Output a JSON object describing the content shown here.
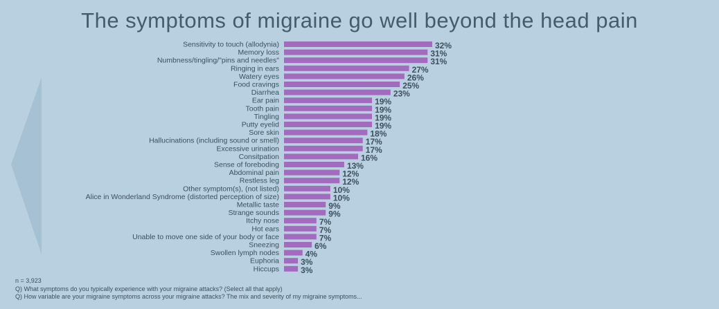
{
  "title": "The symptoms of migraine go well beyond the head pain",
  "colors": {
    "background": "#b8d0e0",
    "bar": "#a36bbd",
    "text": "#3d4f5e",
    "title": "#475b6b",
    "arrow": "#a6c1d4"
  },
  "chart_data": {
    "type": "bar",
    "orientation": "horizontal",
    "title": "The symptoms of migraine go well beyond the head pain",
    "xlim": [
      0,
      32
    ],
    "grid": false,
    "categories": [
      "Sensitivity to touch (allodynia)",
      "Memory loss",
      "Numbness/tingling/\"pins and needles\"",
      "Ringing in ears",
      "Watery eyes",
      "Food cravings",
      "Diarrhea",
      "Ear pain",
      "Tooth pain",
      "Tingling",
      "Putty eyelid",
      "Sore skin",
      "Hallucinations (including sound or smell)",
      "Excessive urination",
      "Consitpation",
      "Sense of foreboding",
      "Abdominal pain",
      "Restless leg",
      "Other symptom(s), (not listed)",
      "Alice in Wonderland Syndrome (distorted perception of size)",
      "Metallic taste",
      "Strange sounds",
      "Itchy nose",
      "Hot ears",
      "Unable to move one side of your body or face",
      "Sneezing",
      "Swollen lymph nodes",
      "Euphoria",
      "Hiccups"
    ],
    "values": [
      32,
      31,
      31,
      27,
      26,
      25,
      23,
      19,
      19,
      19,
      19,
      18,
      17,
      17,
      16,
      13,
      12,
      12,
      10,
      10,
      9,
      9,
      7,
      7,
      7,
      6,
      4,
      3,
      3
    ],
    "value_labels": [
      "32%",
      "31%",
      "31%",
      "27%",
      "26%",
      "25%",
      "23%",
      "19%",
      "19%",
      "19%",
      "19%",
      "18%",
      "17%",
      "17%",
      "16%",
      "13%",
      "12%",
      "12%",
      "10%",
      "10%",
      "9%",
      "9%",
      "7%",
      "7%",
      "7%",
      "6%",
      "4%",
      "3%",
      "3%"
    ]
  },
  "footer": {
    "n": "n = 3,923",
    "q1": "Q) What symptoms do you typically experience with your migraine attacks? (Select all that apply)",
    "q2": "Q) How variable are your migraine symptoms across your migraine attacks? The mix and severity of my migraine symptoms..."
  }
}
